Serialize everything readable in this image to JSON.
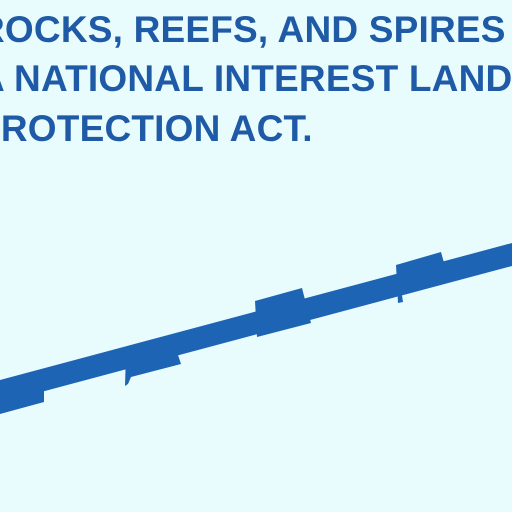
{
  "caption": {
    "lines": [
      "ROCKS, REEFS, AND SPIRES",
      "A NATIONAL INTEREST LANDS",
      "PROTECTION ACT."
    ]
  },
  "colors": {
    "background": "#e8fbfd",
    "text": "#1f5aa6",
    "boundary_line": "#1e64b4"
  },
  "boundary": {
    "symbol": "stepped-boundary-line"
  }
}
